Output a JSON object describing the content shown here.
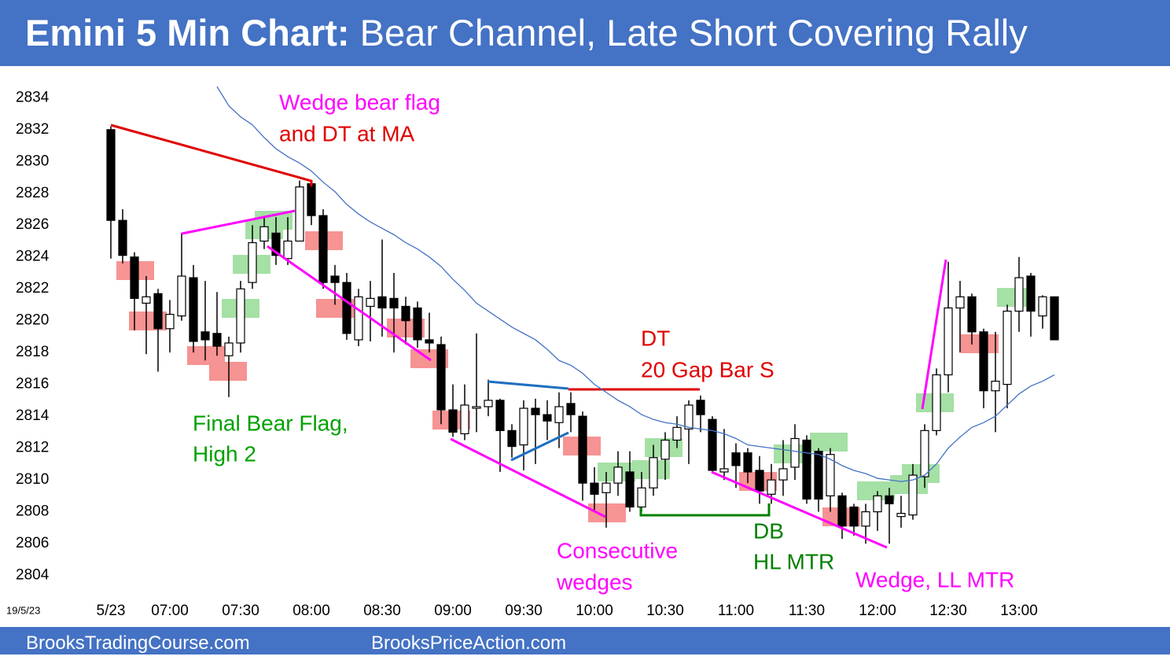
{
  "chart_data": {
    "type": "candlestick",
    "title_bold": "Emini 5 Min Chart:",
    "title_rest": "Bear Channel, Late Short Covering Rally",
    "date_label": "19/5/23",
    "footer_left": "BrooksTradingCourse.com",
    "footer_right": "BrooksPriceAction.com",
    "ylim": [
      2802.1,
      2835.2
    ],
    "yticks": [
      2804,
      2806,
      2808,
      2810,
      2812,
      2814,
      2816,
      2818,
      2820,
      2822,
      2824,
      2826,
      2828,
      2830,
      2832,
      2834
    ],
    "categories": [
      "5/23",
      null,
      null,
      null,
      null,
      "07:00",
      null,
      null,
      null,
      null,
      null,
      "07:30",
      null,
      null,
      null,
      null,
      null,
      "08:00",
      null,
      null,
      null,
      null,
      null,
      "08:30",
      null,
      null,
      null,
      null,
      null,
      "09:00",
      null,
      null,
      null,
      null,
      null,
      "09:30",
      null,
      null,
      null,
      null,
      null,
      "10:00",
      null,
      null,
      null,
      null,
      null,
      "10:30",
      null,
      null,
      null,
      null,
      null,
      "11:00",
      null,
      null,
      null,
      null,
      null,
      "11:30",
      null,
      null,
      null,
      null,
      null,
      "12:00",
      null,
      null,
      null,
      null,
      null,
      "12:30",
      null,
      null,
      null,
      null,
      null,
      "13:00",
      null,
      null,
      null
    ],
    "open": [
      2832,
      2826.3,
      2824,
      2821.1,
      2821.7,
      2819.5,
      2820.3,
      2822.7,
      2819.3,
      2819.2,
      2817.8,
      2818.6,
      2822.4,
      2825,
      2825.5,
      2823.9,
      2825,
      2828.6,
      2826.6,
      2822.8,
      2822.4,
      2818.8,
      2820.9,
      2821.5,
      2821.4,
      2820.9,
      2820.8,
      2818.8,
      2818.5,
      2814.4,
      2812.9,
      2814.5,
      2814.6,
      2815,
      2813.1,
      2812.2,
      2814.5,
      2814.1,
      2813.6,
      2814.8,
      2814,
      2809.8,
      2809.2,
      2809.8,
      2810.5,
      2808.3,
      2809.5,
      2811.3,
      2812.5,
      2813.2,
      2815,
      2813.8,
      2810.5,
      2811.7,
      2811.7,
      2810.6,
      2809.1,
      2810,
      2810.8,
      2812.5,
      2811.8,
      2809,
      2809,
      2808.3,
      2807.1,
      2808,
      2809,
      2807.7,
      2807.8,
      2810.2,
      2813.1,
      2816.6,
      2820.8,
      2821.5,
      2819.3,
      2815.6,
      2816,
      2820.6,
      2822.8,
      2820.3,
      2821.5
    ],
    "high": [
      2832.2,
      2827,
      2824.3,
      2822.8,
      2822,
      2821.3,
      2825.5,
      2823.5,
      2822.5,
      2821.8,
      2819,
      2822.5,
      2826,
      2826.5,
      2826.5,
      2826.5,
      2828.8,
      2828.8,
      2827,
      2823.5,
      2823,
      2822,
      2822.5,
      2825.1,
      2823,
      2821.5,
      2821.2,
      2820.5,
      2819,
      2816,
      2816,
      2819.2,
      2816.3,
      2815.1,
      2813.5,
      2815,
      2815.1,
      2815,
      2815.5,
      2815.5,
      2814.3,
      2810.8,
      2810.5,
      2811.8,
      2811.8,
      2810.5,
      2812.2,
      2813,
      2814,
      2815,
      2815.3,
      2814,
      2813.2,
      2812.3,
      2812,
      2811.5,
      2811,
      2812.5,
      2813.5,
      2812.8,
      2812,
      2812,
      2809.2,
      2808.5,
      2808.5,
      2809.3,
      2809.5,
      2809,
      2811,
      2813.5,
      2817,
      2823.7,
      2822.5,
      2821.7,
      2819.5,
      2819.3,
      2821,
      2824,
      2823,
      2821.6,
      2821.5
    ],
    "low": [
      2823.9,
      2823.6,
      2819.4,
      2817.9,
      2816.8,
      2818,
      2820,
      2818,
      2817.5,
      2817.8,
      2815.2,
      2818,
      2822,
      2824.5,
      2823.5,
      2823.5,
      2825,
      2826,
      2822,
      2821,
      2818.8,
      2818.4,
      2818.7,
      2819,
      2818,
      2818.5,
      2818.3,
      2818,
      2813.5,
      2812.7,
      2812.5,
      2813,
      2814,
      2810.5,
      2811.4,
      2810.6,
      2811,
      2812.5,
      2812,
      2813,
      2808.7,
      2808,
      2807,
      2809,
      2808,
      2808,
      2809,
      2810,
      2812,
      2811,
      2813,
      2810.4,
      2810,
      2809.5,
      2809.8,
      2808.5,
      2808.5,
      2809,
      2810,
      2808.5,
      2808,
      2808,
      2806.3,
      2806.5,
      2806,
      2806.8,
      2806,
      2807,
      2807.5,
      2809.5,
      2812.8,
      2815.5,
      2818,
      2818.5,
      2814.5,
      2813,
      2814.5,
      2819.3,
      2819,
      2819.5,
      2818.8
    ],
    "close": [
      2826.3,
      2824.1,
      2821.4,
      2821.5,
      2819.5,
      2820.4,
      2822.8,
      2818.7,
      2818.8,
      2818.4,
      2818.6,
      2822,
      2824.9,
      2825.9,
      2824.1,
      2825,
      2828.4,
      2826.6,
      2822.4,
      2822.4,
      2819.2,
      2821.5,
      2821.4,
      2820.8,
      2820.8,
      2820,
      2818.8,
      2818.6,
      2814.4,
      2813,
      2814.7,
      2814.6,
      2815,
      2813.1,
      2812.1,
      2814.5,
      2814.1,
      2813.7,
      2814.6,
      2814.1,
      2809.8,
      2809.1,
      2809.8,
      2810.8,
      2808.3,
      2809.5,
      2811.4,
      2812.5,
      2813.3,
      2814.7,
      2814.1,
      2810.6,
      2810.7,
      2810.9,
      2810.5,
      2809.3,
      2810,
      2810.7,
      2812.6,
      2808.8,
      2808.8,
      2811.6,
      2807.1,
      2807.1,
      2808,
      2809,
      2808.5,
      2807.9,
      2810.3,
      2813.1,
      2816.6,
      2820.8,
      2821.5,
      2819.3,
      2815.6,
      2816.2,
      2820.6,
      2822.7,
      2820.6,
      2821.5,
      2818.8
    ],
    "up_color": "#ffffff",
    "down_color": "#000000",
    "moving_average": {
      "color": "#4472c4",
      "values": [
        null,
        null,
        null,
        null,
        null,
        null,
        null,
        null,
        null,
        2834.7,
        2833.5,
        2832.8,
        2832.3,
        2831.5,
        2830.8,
        2830.3,
        2829.9,
        2829.4,
        2828.7,
        2828.1,
        2827.3,
        2826.7,
        2826.2,
        2825.8,
        2825.4,
        2824.9,
        2824.5,
        2824,
        2823.4,
        2822.6,
        2821.9,
        2821.1,
        2820.6,
        2820.1,
        2819.6,
        2819.2,
        2818.8,
        2818.2,
        2817.5,
        2817.2,
        2816.7,
        2816,
        2815.5,
        2815,
        2814.6,
        2814.1,
        2813.8,
        2813.6,
        2813.5,
        2813.3,
        2813.2,
        2813.1,
        2812.9,
        2812.6,
        2812.2,
        2812.1,
        2812,
        2811.9,
        2811.8,
        2811.7,
        2811.6,
        2811.3,
        2810.9,
        2810.6,
        2810.4,
        2810.1,
        2810,
        2809.9,
        2810,
        2810.3,
        2811,
        2812,
        2812.7,
        2813.3,
        2813.6,
        2814,
        2814.7,
        2815.4,
        2815.9,
        2816.2,
        2816.6
      ]
    },
    "annotations": [
      {
        "text": "Wedge bear flag",
        "color": "#ff00ff"
      },
      {
        "text": "and DT at MA",
        "color": "#e00000"
      },
      {
        "text": "Final Bear Flag,",
        "color": "#00a000"
      },
      {
        "text": "High 2",
        "color": "#00a000"
      },
      {
        "text": "DT",
        "color": "#e00000"
      },
      {
        "text": "20 Gap Bar S",
        "color": "#e00000"
      },
      {
        "text": "Consecutive",
        "color": "#ff00ff"
      },
      {
        "text": "wedges",
        "color": "#ff00ff"
      },
      {
        "text": "DB",
        "color": "#008000"
      },
      {
        "text": "HL MTR",
        "color": "#008000"
      },
      {
        "text": "Wedge, LL MTR",
        "color": "#ff00ff"
      }
    ]
  }
}
